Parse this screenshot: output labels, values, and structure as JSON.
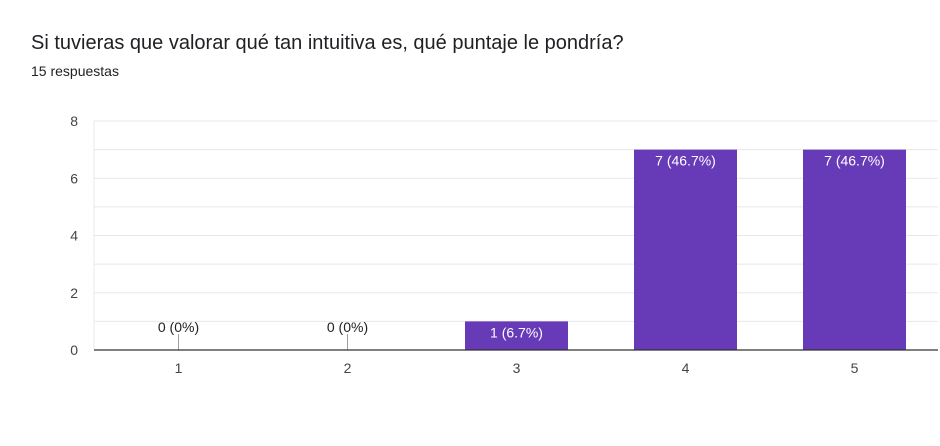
{
  "question": {
    "title": "Si tuvieras que valorar qué tan intuitiva es, qué puntaje le pondría?",
    "responses": "15 respuestas"
  },
  "chart_data": {
    "type": "bar",
    "categories": [
      "1",
      "2",
      "3",
      "4",
      "5"
    ],
    "values": [
      0,
      0,
      1,
      7,
      7
    ],
    "data_labels": [
      "0 (0%)",
      "0 (0%)",
      "1 (6.7%)",
      "7 (46.7%)",
      "7 (46.7%)"
    ],
    "y_ticks": [
      0,
      2,
      4,
      6,
      8
    ],
    "ylim": [
      0,
      8
    ],
    "grid": true,
    "bar_color": "#673ab7",
    "grid_color": "#e8e8e8",
    "axis_color": "#333333"
  }
}
